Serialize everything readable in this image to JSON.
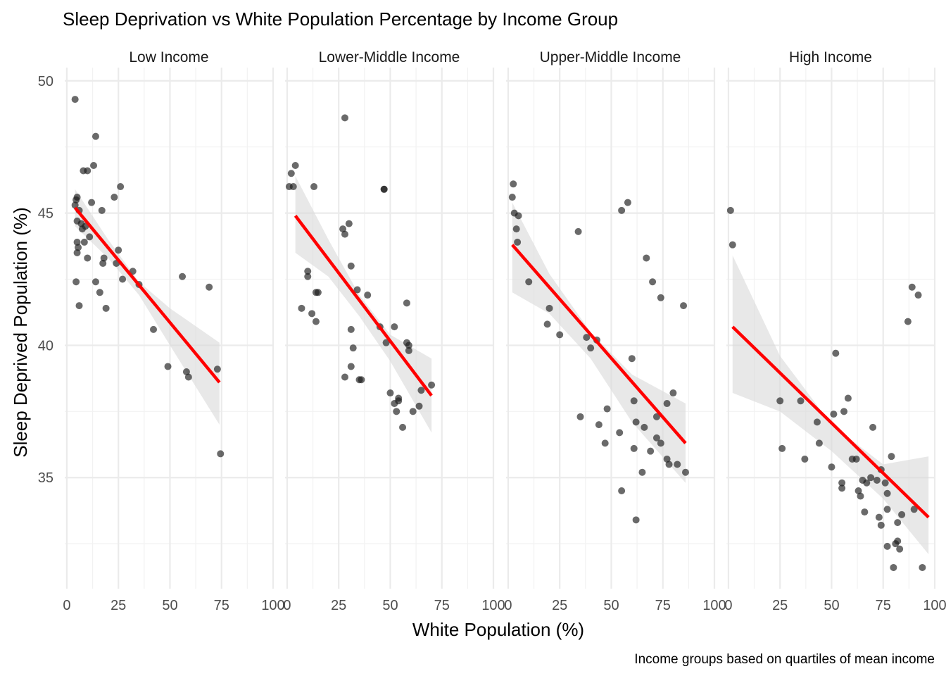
{
  "chart_data": {
    "type": "scatter",
    "title": "Sleep Deprivation vs White Population Percentage by Income Group",
    "xlabel": "White Population (%)",
    "ylabel": "Sleep Deprived Population (%)",
    "caption": "Income groups based on quartiles of mean income",
    "xlim": [
      -1,
      100
    ],
    "ylim": [
      30.8,
      50.5
    ],
    "x_ticks": [
      "0",
      "25",
      "50",
      "75",
      "100"
    ],
    "x_tick_values": [
      0,
      25,
      50,
      75,
      100
    ],
    "y_ticks": [
      "35",
      "40",
      "45",
      "50"
    ],
    "y_tick_values": [
      35,
      40,
      45,
      50
    ],
    "grid": true,
    "trend_line": "linear fit with confidence band",
    "colors": {
      "points": "#1a1a1a",
      "trend": "#ff0000",
      "band": "#d9d9d9",
      "grid": "#ebebeb"
    },
    "facets": [
      {
        "name": "Low Income",
        "points": [
          [
            4,
            49.3
          ],
          [
            4,
            45.3
          ],
          [
            4.5,
            45.5
          ],
          [
            5,
            45.6
          ],
          [
            5,
            44.7
          ],
          [
            5,
            43.9
          ],
          [
            5,
            43.5
          ],
          [
            5.5,
            43.7
          ],
          [
            6,
            45.1
          ],
          [
            6,
            41.5
          ],
          [
            4.5,
            42.4
          ],
          [
            7,
            44.6
          ],
          [
            7.5,
            44.4
          ],
          [
            8,
            46.6
          ],
          [
            8.5,
            43.9
          ],
          [
            9,
            44.5
          ],
          [
            10,
            46.6
          ],
          [
            10,
            43.3
          ],
          [
            11,
            44.1
          ],
          [
            12,
            45.4
          ],
          [
            13,
            46.8
          ],
          [
            14,
            47.9
          ],
          [
            14,
            42.4
          ],
          [
            16,
            42.0
          ],
          [
            17,
            45.1
          ],
          [
            17.5,
            43.1
          ],
          [
            18,
            43.3
          ],
          [
            19,
            41.4
          ],
          [
            23,
            45.6
          ],
          [
            24,
            43.1
          ],
          [
            25,
            43.6
          ],
          [
            26,
            46.0
          ],
          [
            27,
            42.5
          ],
          [
            32,
            42.8
          ],
          [
            35,
            42.3
          ],
          [
            42,
            40.6
          ],
          [
            49,
            39.2
          ],
          [
            56,
            42.6
          ],
          [
            58,
            39.0
          ],
          [
            59,
            38.8
          ],
          [
            69,
            42.2
          ],
          [
            73,
            39.1
          ],
          [
            74.5,
            35.9
          ]
        ],
        "fit": [
          [
            4,
            45.2
          ],
          [
            74,
            38.6
          ]
        ],
        "band": [
          [
            4,
            45.9,
            44.5
          ],
          [
            20,
            44.0,
            43.3
          ],
          [
            35,
            42.4,
            41.9
          ],
          [
            50,
            41.4,
            40.0
          ],
          [
            74,
            40.1,
            37.0
          ]
        ]
      },
      {
        "name": "Lower-Middle Income",
        "points": [
          [
            1,
            46.0
          ],
          [
            2,
            46.5
          ],
          [
            3,
            46.0
          ],
          [
            4,
            46.8
          ],
          [
            7,
            41.4
          ],
          [
            10,
            42.8
          ],
          [
            10,
            42.6
          ],
          [
            12,
            41.2
          ],
          [
            13,
            46.0
          ],
          [
            14,
            40.9
          ],
          [
            14,
            42.0
          ],
          [
            15,
            42.0
          ],
          [
            27,
            44.4
          ],
          [
            28,
            44.2
          ],
          [
            28,
            38.8
          ],
          [
            28,
            48.6
          ],
          [
            30,
            44.6
          ],
          [
            31,
            43.0
          ],
          [
            31,
            40.6
          ],
          [
            32,
            39.9
          ],
          [
            31,
            39.2
          ],
          [
            34,
            42.1
          ],
          [
            35,
            38.7
          ],
          [
            36,
            38.7
          ],
          [
            39,
            41.9
          ],
          [
            45,
            40.7
          ],
          [
            47,
            45.9
          ],
          [
            47,
            45.9
          ],
          [
            48,
            40.1
          ],
          [
            50,
            38.2
          ],
          [
            52,
            37.8
          ],
          [
            52,
            40.7
          ],
          [
            53,
            37.5
          ],
          [
            54,
            37.9
          ],
          [
            54,
            38.0
          ],
          [
            56,
            36.9
          ],
          [
            58,
            40.1
          ],
          [
            58,
            41.6
          ],
          [
            59,
            39.8
          ],
          [
            59,
            40.0
          ],
          [
            61,
            37.5
          ],
          [
            64,
            37.7
          ],
          [
            65,
            38.3
          ],
          [
            70,
            38.5
          ]
        ],
        "fit": [
          [
            4,
            44.9
          ],
          [
            70,
            38.1
          ]
        ],
        "band": [
          [
            4,
            46.4,
            43.5
          ],
          [
            20,
            44.0,
            42.6
          ],
          [
            35,
            41.9,
            41.1
          ],
          [
            50,
            40.4,
            39.4
          ],
          [
            70,
            39.5,
            36.7
          ]
        ]
      },
      {
        "name": "Upper-Middle Income",
        "points": [
          [
            2,
            45.6
          ],
          [
            2.5,
            46.1
          ],
          [
            3,
            45.0
          ],
          [
            4,
            44.4
          ],
          [
            4.5,
            43.9
          ],
          [
            5,
            44.9
          ],
          [
            10,
            42.4
          ],
          [
            19,
            40.8
          ],
          [
            20,
            41.4
          ],
          [
            25,
            40.4
          ],
          [
            34,
            44.3
          ],
          [
            35,
            37.3
          ],
          [
            38,
            40.3
          ],
          [
            40,
            39.9
          ],
          [
            43,
            40.2
          ],
          [
            44,
            37.0
          ],
          [
            47,
            36.3
          ],
          [
            48,
            37.6
          ],
          [
            54,
            36.7
          ],
          [
            55,
            45.1
          ],
          [
            55,
            34.5
          ],
          [
            58,
            45.4
          ],
          [
            60,
            39.5
          ],
          [
            61,
            37.9
          ],
          [
            61,
            36.1
          ],
          [
            62,
            33.4
          ],
          [
            62,
            37.1
          ],
          [
            65,
            35.2
          ],
          [
            66,
            36.9
          ],
          [
            67,
            43.3
          ],
          [
            69,
            36.0
          ],
          [
            70,
            42.4
          ],
          [
            72,
            36.5
          ],
          [
            72,
            37.3
          ],
          [
            74,
            41.8
          ],
          [
            74,
            36.3
          ],
          [
            77,
            35.7
          ],
          [
            77,
            37.8
          ],
          [
            78,
            35.5
          ],
          [
            80,
            38.2
          ],
          [
            82,
            35.5
          ],
          [
            85,
            41.5
          ],
          [
            86,
            35.2
          ]
        ],
        "fit": [
          [
            2,
            43.8
          ],
          [
            86,
            36.3
          ]
        ],
        "band": [
          [
            2,
            45.4,
            42.0
          ],
          [
            20,
            42.7,
            41.2
          ],
          [
            40,
            40.5,
            39.5
          ],
          [
            60,
            38.9,
            37.1
          ],
          [
            86,
            37.8,
            34.8
          ]
        ]
      },
      {
        "name": "High Income",
        "points": [
          [
            1,
            45.1
          ],
          [
            2,
            43.8
          ],
          [
            25,
            37.9
          ],
          [
            26,
            36.1
          ],
          [
            35,
            37.9
          ],
          [
            37,
            35.7
          ],
          [
            43,
            37.1
          ],
          [
            44,
            36.3
          ],
          [
            50,
            35.4
          ],
          [
            51,
            37.4
          ],
          [
            52,
            39.7
          ],
          [
            55,
            34.6
          ],
          [
            55,
            34.8
          ],
          [
            56,
            37.5
          ],
          [
            58,
            38.0
          ],
          [
            60,
            35.7
          ],
          [
            62,
            35.7
          ],
          [
            63,
            34.5
          ],
          [
            64,
            34.3
          ],
          [
            65,
            34.9
          ],
          [
            66,
            33.7
          ],
          [
            67,
            34.8
          ],
          [
            69,
            35.0
          ],
          [
            70,
            36.9
          ],
          [
            72,
            34.9
          ],
          [
            73,
            33.5
          ],
          [
            74,
            33.2
          ],
          [
            74,
            35.3
          ],
          [
            76,
            34.8
          ],
          [
            77,
            33.8
          ],
          [
            77,
            32.4
          ],
          [
            77,
            34.4
          ],
          [
            79,
            35.8
          ],
          [
            80,
            31.6
          ],
          [
            81,
            32.5
          ],
          [
            82,
            33.3
          ],
          [
            82,
            32.6
          ],
          [
            83,
            32.3
          ],
          [
            84,
            33.6
          ],
          [
            87,
            40.9
          ],
          [
            89,
            42.2
          ],
          [
            90,
            33.8
          ],
          [
            92,
            41.9
          ],
          [
            94,
            31.6
          ]
        ],
        "fit": [
          [
            2,
            40.7
          ],
          [
            97,
            33.5
          ]
        ],
        "band": [
          [
            2,
            43.4,
            38.2
          ],
          [
            25,
            39.6,
            37.5
          ],
          [
            50,
            37.0,
            36.0
          ],
          [
            75,
            35.5,
            34.2
          ],
          [
            97,
            35.8,
            32.1
          ]
        ]
      }
    ]
  }
}
